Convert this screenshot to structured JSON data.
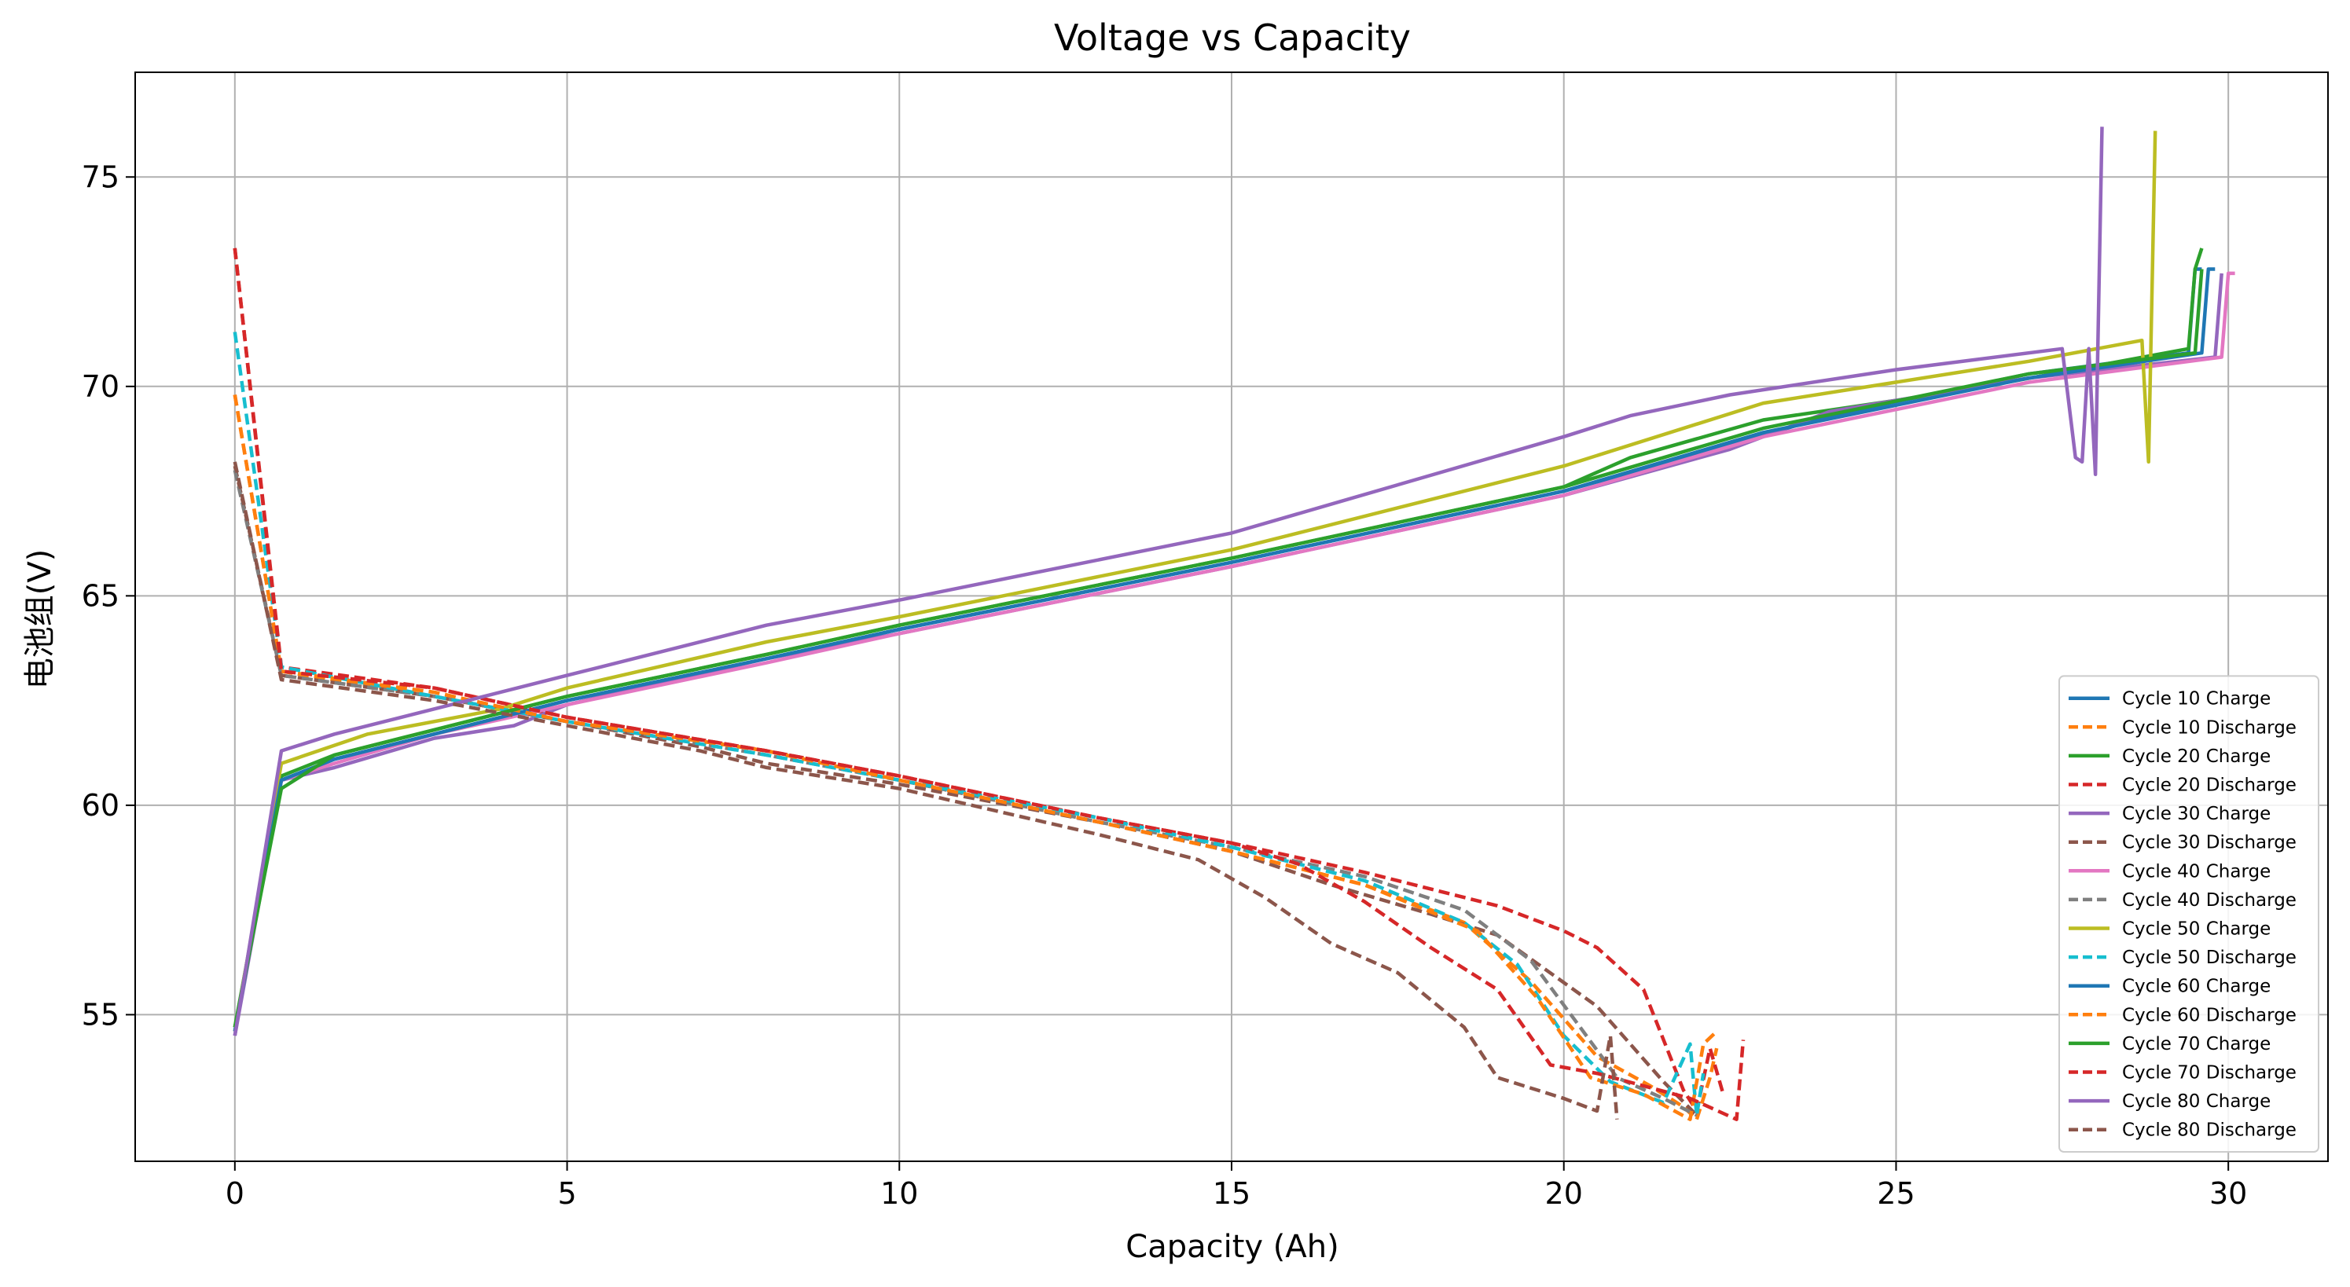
{
  "chart_data": {
    "type": "line",
    "title": "Voltage vs Capacity",
    "xlabel": "Capacity (Ah)",
    "ylabel": "电池组(V)",
    "xlim": [
      -1.5,
      31.5
    ],
    "ylim": [
      51.5,
      77.5
    ],
    "xticks": [
      0,
      5,
      10,
      15,
      20,
      25,
      30
    ],
    "yticks": [
      55,
      60,
      65,
      70,
      75
    ],
    "grid": true,
    "legend_position": "lower-right",
    "series": [
      {
        "name": "Cycle 10 Charge",
        "color": "#1f77b4",
        "dash": "solid",
        "x": [
          0,
          0.7,
          1.5,
          3,
          5,
          8,
          10,
          15,
          20,
          22.5,
          24,
          27,
          29.4,
          29.5,
          29.6
        ],
        "y": [
          54.6,
          60.6,
          61.1,
          61.7,
          62.5,
          63.5,
          64.2,
          65.8,
          67.5,
          68.6,
          69.3,
          70.3,
          70.8,
          72.8,
          72.8
        ]
      },
      {
        "name": "Cycle 10 Discharge",
        "color": "#ff7f0e",
        "dash": "dashed",
        "x": [
          0,
          0.7,
          3,
          5,
          8,
          10,
          13,
          15,
          17,
          18.5,
          19.5,
          20.5,
          21.3,
          21.8,
          22.0,
          22.2,
          22.3
        ],
        "y": [
          69.8,
          63.2,
          62.6,
          62.0,
          61.3,
          60.6,
          59.6,
          58.9,
          58.1,
          57.2,
          55.8,
          54.0,
          53.3,
          52.8,
          52.5,
          53.5,
          54.2
        ]
      },
      {
        "name": "Cycle 20 Charge",
        "color": "#2ca02c",
        "dash": "solid",
        "x": [
          0,
          0.7,
          1.5,
          3,
          5,
          8,
          10,
          15,
          20,
          21,
          23,
          26,
          29.4,
          29.5,
          29.6
        ],
        "y": [
          54.7,
          60.7,
          61.2,
          61.8,
          62.6,
          63.6,
          64.3,
          65.9,
          67.6,
          68.3,
          69.2,
          69.9,
          70.9,
          72.8,
          73.3
        ]
      },
      {
        "name": "Cycle 20 Discharge",
        "color": "#d62728",
        "dash": "dashed",
        "x": [
          0,
          0.7,
          3,
          5,
          8,
          10,
          13,
          15,
          17,
          19,
          20,
          20.5,
          21.2,
          21.8,
          22.0,
          22.2,
          22.4
        ],
        "y": [
          73.3,
          63.3,
          62.8,
          62.1,
          61.3,
          60.7,
          59.7,
          59.1,
          58.4,
          57.6,
          57.0,
          56.6,
          55.6,
          53.2,
          52.7,
          54.2,
          53.1
        ]
      },
      {
        "name": "Cycle 30 Charge",
        "color": "#9467bd",
        "dash": "solid",
        "x": [
          0,
          0.7,
          1.5,
          3,
          4.2,
          5,
          8,
          10,
          15,
          20,
          22.5,
          24,
          27,
          29.8,
          29.9
        ],
        "y": [
          54.5,
          60.6,
          60.9,
          61.6,
          61.9,
          62.4,
          63.5,
          64.1,
          65.7,
          67.4,
          68.5,
          69.4,
          70.2,
          70.7,
          72.7
        ]
      },
      {
        "name": "Cycle 30 Discharge",
        "color": "#8c564b",
        "dash": "dashed",
        "x": [
          0,
          0.7,
          3,
          5,
          7,
          8,
          10,
          13,
          15,
          16.5,
          18,
          19,
          20.5,
          21.5,
          22.0
        ],
        "y": [
          68.1,
          63.1,
          62.6,
          62.0,
          61.4,
          61.0,
          60.5,
          59.6,
          58.9,
          58.1,
          57.4,
          56.9,
          55.2,
          53.4,
          52.6
        ]
      },
      {
        "name": "Cycle 40 Charge",
        "color": "#e377c2",
        "dash": "solid",
        "x": [
          0,
          0.7,
          1.5,
          3,
          5,
          8,
          10,
          15,
          20,
          23,
          27,
          29.9,
          30.0,
          30.1
        ],
        "y": [
          54.6,
          60.6,
          61.0,
          61.7,
          62.4,
          63.4,
          64.1,
          65.7,
          67.4,
          68.8,
          70.1,
          70.7,
          72.7,
          72.7
        ]
      },
      {
        "name": "Cycle 40 Discharge",
        "color": "#7f7f7f",
        "dash": "dashed",
        "x": [
          0,
          0.7,
          3,
          5,
          8,
          10,
          13,
          15,
          17,
          18.5,
          19.5,
          20.2,
          20.8,
          21.5,
          22.0
        ],
        "y": [
          68.0,
          63.1,
          62.6,
          62.0,
          61.2,
          60.6,
          59.6,
          59.0,
          58.3,
          57.5,
          56.3,
          54.8,
          53.5,
          53.0,
          52.6
        ]
      },
      {
        "name": "Cycle 50 Charge",
        "color": "#bcbd22",
        "dash": "solid",
        "x": [
          0,
          0.7,
          2,
          4,
          5,
          8,
          10,
          15,
          20,
          23,
          27,
          28.7,
          28.8,
          28.9
        ],
        "y": [
          54.6,
          61.0,
          61.7,
          62.3,
          62.8,
          63.9,
          64.5,
          66.1,
          68.1,
          69.6,
          70.6,
          71.1,
          68.2,
          76.1
        ]
      },
      {
        "name": "Cycle 50 Discharge",
        "color": "#17becf",
        "dash": "dashed",
        "x": [
          0,
          0.7,
          3,
          5,
          8,
          10,
          13,
          15,
          17,
          18.5,
          19.3,
          20.0,
          20.7,
          21.5,
          21.9,
          22.0,
          22.1
        ],
        "y": [
          71.3,
          63.3,
          62.6,
          62.0,
          61.2,
          60.6,
          59.7,
          59.0,
          58.2,
          57.2,
          56.2,
          54.5,
          53.4,
          52.9,
          54.3,
          52.6,
          53.6
        ]
      },
      {
        "name": "Cycle 60 Charge",
        "color": "#1f77b4",
        "dash": "solid",
        "x": [
          0,
          0.7,
          1.5,
          3,
          5,
          8,
          10,
          15,
          20,
          23,
          27,
          29.6,
          29.7,
          29.8
        ],
        "y": [
          54.6,
          60.6,
          61.1,
          61.7,
          62.5,
          63.5,
          64.2,
          65.8,
          67.5,
          68.9,
          70.2,
          70.8,
          72.8,
          72.8
        ]
      },
      {
        "name": "Cycle 60 Discharge",
        "color": "#ff7f0e",
        "dash": "dashed",
        "x": [
          0,
          0.7,
          3,
          5,
          8,
          10,
          13,
          15,
          17,
          18.7,
          19.6,
          20.4,
          21.2,
          21.9,
          22.1,
          22.3
        ],
        "y": [
          69.8,
          63.2,
          62.7,
          62.0,
          61.3,
          60.6,
          59.6,
          58.9,
          58.1,
          57.0,
          55.4,
          53.5,
          53.1,
          52.5,
          54.3,
          54.6
        ]
      },
      {
        "name": "Cycle 70 Charge",
        "color": "#2ca02c",
        "dash": "solid",
        "x": [
          0,
          0.7,
          1.5,
          3,
          5,
          8,
          10,
          15,
          20,
          23,
          27,
          29.5,
          29.6
        ],
        "y": [
          54.7,
          60.4,
          61.2,
          61.8,
          62.6,
          63.6,
          64.3,
          65.9,
          67.6,
          69.0,
          70.3,
          70.8,
          72.8
        ]
      },
      {
        "name": "Cycle 70 Discharge",
        "color": "#d62728",
        "dash": "dashed",
        "x": [
          0,
          0.7,
          3,
          5,
          8,
          10,
          13,
          15,
          16,
          17,
          18,
          19,
          19.8,
          20.5,
          21.2,
          21.9,
          22.6,
          22.7
        ],
        "y": [
          73.3,
          63.2,
          62.8,
          62.1,
          61.3,
          60.7,
          59.7,
          59.1,
          58.6,
          57.7,
          56.6,
          55.6,
          53.8,
          53.6,
          53.3,
          53.0,
          52.5,
          54.4
        ]
      },
      {
        "name": "Cycle 80 Charge",
        "color": "#9467bd",
        "dash": "solid",
        "x": [
          0,
          0.7,
          1.5,
          3,
          5,
          8,
          10,
          15,
          20,
          21,
          22.5,
          25,
          27.5,
          27.7,
          27.8,
          27.9,
          28.0,
          28.1
        ],
        "y": [
          54.5,
          61.3,
          61.7,
          62.3,
          63.1,
          64.3,
          64.9,
          66.5,
          68.8,
          69.3,
          69.8,
          70.4,
          70.9,
          68.3,
          68.2,
          70.9,
          67.9,
          76.2
        ]
      },
      {
        "name": "Cycle 80 Discharge",
        "color": "#8c564b",
        "dash": "dashed",
        "x": [
          0,
          0.7,
          3,
          5,
          7,
          8,
          10,
          13,
          14.5,
          15.5,
          16.5,
          17.5,
          18.5,
          19,
          20,
          20.5,
          20.7,
          20.8
        ],
        "y": [
          68.2,
          63.0,
          62.5,
          61.9,
          61.3,
          60.9,
          60.4,
          59.3,
          58.7,
          57.8,
          56.7,
          56.0,
          54.7,
          53.5,
          53.0,
          52.7,
          54.5,
          52.5
        ]
      }
    ]
  }
}
